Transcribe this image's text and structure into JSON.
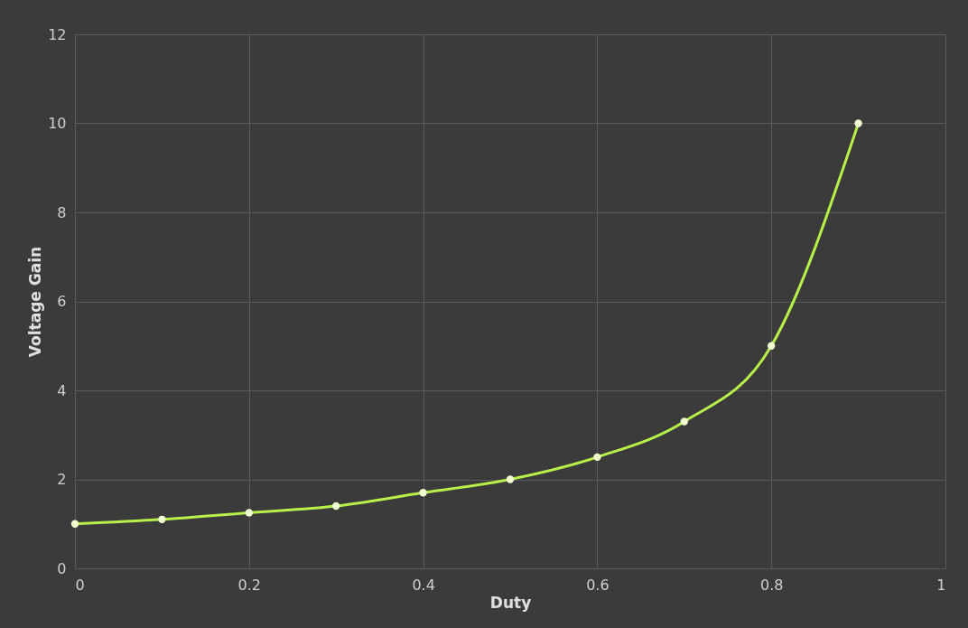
{
  "chart_data": {
    "type": "line",
    "xlabel": "Duty",
    "ylabel": "Voltage Gain",
    "x": [
      0,
      0.1,
      0.2,
      0.3,
      0.4,
      0.5,
      0.6,
      0.7,
      0.8,
      0.9
    ],
    "series": [
      {
        "color": "#b8f04a",
        "values": [
          1,
          1.1,
          1.25,
          1.4,
          1.7,
          2,
          2.5,
          3.3,
          5,
          10
        ]
      }
    ],
    "xlim": [
      0,
      1
    ],
    "xticks": [
      0,
      0.2,
      0.4,
      0.6,
      0.8,
      1
    ],
    "ylim": [
      0,
      12
    ],
    "yticks": [
      0,
      2,
      4,
      6,
      8,
      10,
      12
    ],
    "grid": true,
    "marker": "circle",
    "line_style": "solid"
  }
}
